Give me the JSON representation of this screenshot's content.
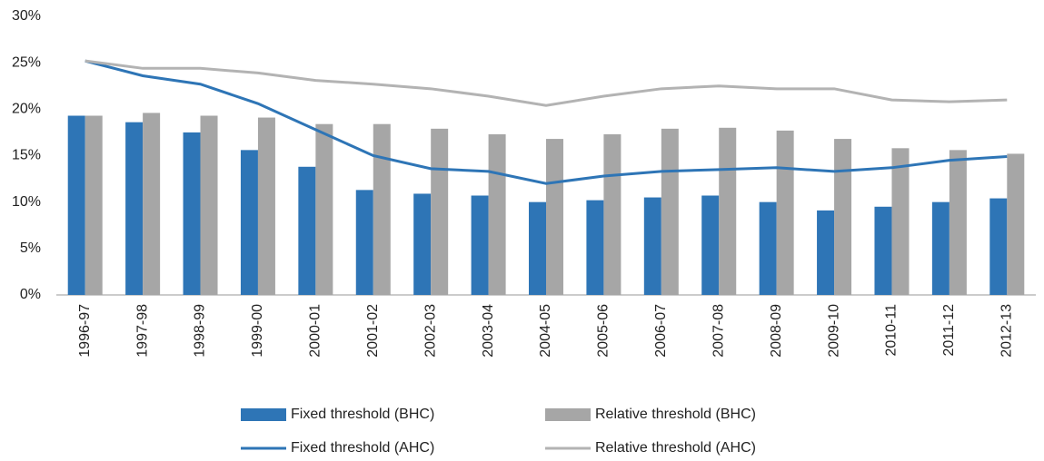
{
  "chart_data": {
    "type": "bar",
    "categories": [
      "1996-97",
      "1997-98",
      "1998-99",
      "1999-00",
      "2000-01",
      "2001-02",
      "2002-03",
      "2003-04",
      "2004-05",
      "2005-06",
      "2006-07",
      "2007-08",
      "2008-09",
      "2009-10",
      "2010-11",
      "2011-12",
      "2012-13"
    ],
    "series": [
      {
        "name": "Fixed threshold (BHC)",
        "type": "bar",
        "color": "#2e75b6",
        "values": [
          19.3,
          18.6,
          17.5,
          15.6,
          13.8,
          11.3,
          10.9,
          10.7,
          10.0,
          10.2,
          10.5,
          10.7,
          10.0,
          9.1,
          9.5,
          10.0,
          10.4
        ]
      },
      {
        "name": "Relative threshold (BHC)",
        "type": "bar",
        "color": "#a6a6a6",
        "values": [
          19.3,
          19.6,
          19.3,
          19.1,
          18.4,
          18.4,
          17.9,
          17.3,
          16.8,
          17.3,
          17.9,
          18.0,
          17.7,
          16.8,
          15.8,
          15.6,
          15.2
        ]
      },
      {
        "name": "Fixed threshold (AHC)",
        "type": "line",
        "color": "#2e75b6",
        "values": [
          25.2,
          23.6,
          22.7,
          20.6,
          17.8,
          15.0,
          13.6,
          13.3,
          12.0,
          12.8,
          13.3,
          13.5,
          13.7,
          13.3,
          13.7,
          14.5,
          14.9
        ]
      },
      {
        "name": "Relative threshold (AHC)",
        "type": "line",
        "color": "#b3b3b3",
        "values": [
          25.2,
          24.4,
          24.4,
          23.9,
          23.1,
          22.7,
          22.2,
          21.4,
          20.4,
          21.4,
          22.2,
          22.5,
          22.2,
          22.2,
          21.0,
          20.8,
          21.0
        ]
      }
    ],
    "ylim": [
      0,
      30
    ],
    "yticks": [
      {
        "value": 0,
        "label": "0%"
      },
      {
        "value": 5,
        "label": "5%"
      },
      {
        "value": 10,
        "label": "10%"
      },
      {
        "value": 15,
        "label": "15%"
      },
      {
        "value": 20,
        "label": "20%"
      },
      {
        "value": 25,
        "label": "25%"
      },
      {
        "value": 30,
        "label": "30%"
      }
    ],
    "grid": false
  }
}
